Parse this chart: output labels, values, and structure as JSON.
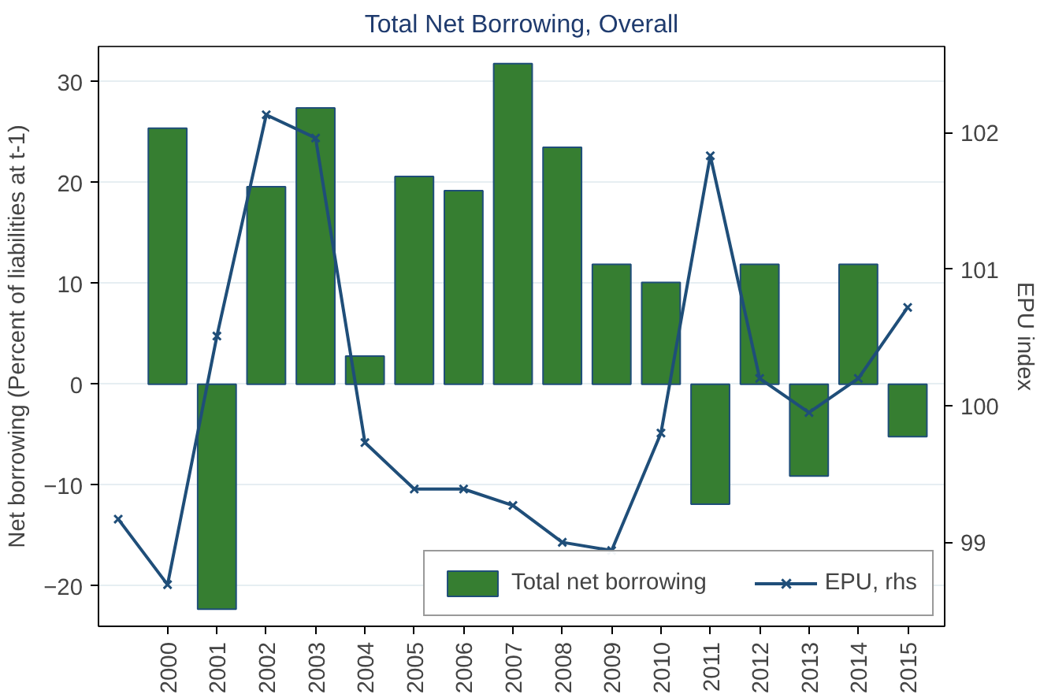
{
  "chart_data": {
    "type": "bar",
    "title": "Total Net Borrowing, Overall",
    "ylabel": "Net borrowing (Percent of liabilities at t-1)",
    "y2label": "EPU index",
    "x": [
      2000,
      2001,
      2002,
      2003,
      2004,
      2005,
      2006,
      2007,
      2008,
      2009,
      2010,
      2011,
      2012,
      2013,
      2014,
      2015
    ],
    "series": [
      {
        "name": "Total net borrowing",
        "color": "#367e31",
        "values": [
          25.4,
          -22.3,
          19.6,
          27.4,
          2.8,
          20.6,
          19.2,
          31.8,
          23.5,
          11.9,
          10.1,
          -11.9,
          11.9,
          -9.1,
          11.9,
          -5.2
        ]
      },
      {
        "name": "EPU, rhs",
        "type": "line",
        "axis": "y2",
        "color": "#1f4e79",
        "marker": "cross",
        "x": [
          1999,
          2000,
          2001,
          2002,
          2003,
          2004,
          2005,
          2006,
          2007,
          2008,
          2009,
          2010,
          2011,
          2012,
          2013,
          2014,
          2015
        ],
        "values": [
          99.17,
          98.69,
          100.51,
          102.13,
          101.96,
          99.73,
          99.39,
          99.39,
          99.27,
          99.0,
          98.94,
          99.8,
          101.83,
          100.2,
          99.95,
          100.2,
          100.72
        ]
      }
    ],
    "xlim": [
      1998.6,
      2015.75
    ],
    "xticks": [
      2000,
      2001,
      2002,
      2003,
      2004,
      2005,
      2006,
      2007,
      2008,
      2009,
      2010,
      2011,
      2012,
      2013,
      2014,
      2015
    ],
    "ylim": [
      -24,
      33.5
    ],
    "yticks": [
      -20,
      -10,
      0,
      10,
      20,
      30
    ],
    "y2lim": [
      98.385,
      102.63
    ],
    "y2ticks": [
      99,
      100,
      101,
      102
    ],
    "grid": "y",
    "legend": "bottom right"
  }
}
